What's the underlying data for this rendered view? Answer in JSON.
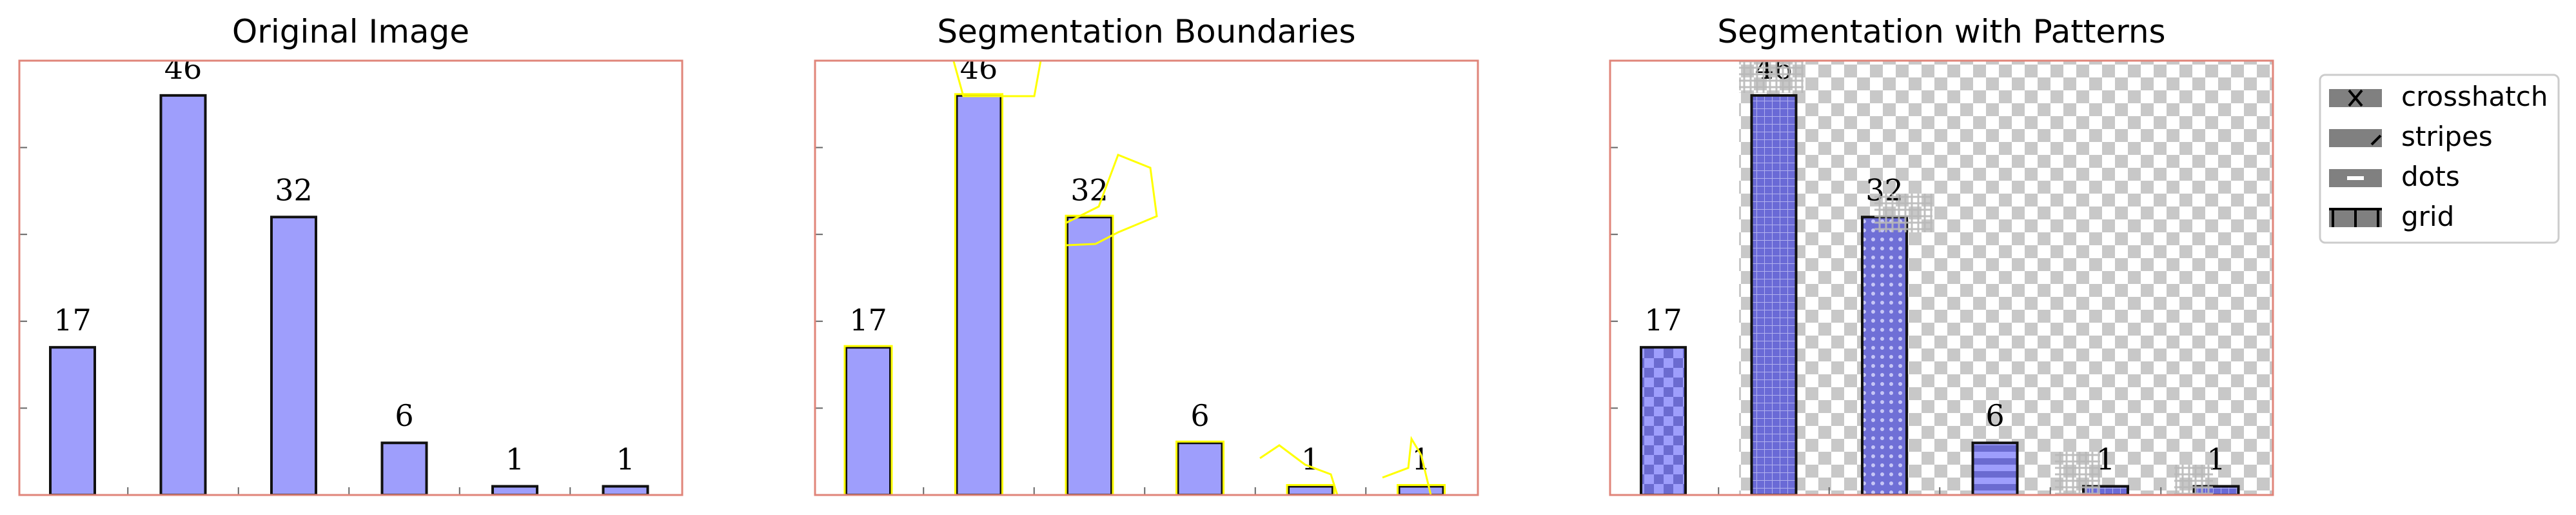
{
  "colors": {
    "bar": "#9e9efc",
    "bar_dark": "#6666cc",
    "frame": "#e0857a",
    "boundary": "#ffff00",
    "checker": "#c8c8c8"
  },
  "legend": {
    "entries": [
      {
        "label": "crosshatch",
        "icon": "crosshatch-swatch"
      },
      {
        "label": "stripes",
        "icon": "stripes-swatch"
      },
      {
        "label": "dots",
        "icon": "dots-swatch"
      },
      {
        "label": "grid",
        "icon": "grid-swatch"
      }
    ]
  },
  "chart_data": [
    {
      "type": "bar",
      "title": "Original Image",
      "categories": [
        "",
        "",
        "",
        "",
        "",
        ""
      ],
      "values": [
        17,
        46,
        32,
        6,
        1,
        1
      ],
      "data_labels": [
        "17",
        "46",
        "32",
        "6",
        "1",
        "1"
      ],
      "ylim": [
        0,
        50
      ],
      "grid": false
    },
    {
      "type": "bar",
      "title": "Segmentation Boundaries",
      "categories": [
        "",
        "",
        "",
        "",
        "",
        ""
      ],
      "values": [
        17,
        46,
        32,
        6,
        1,
        1
      ],
      "data_labels": [
        "17",
        "46",
        "32",
        "6",
        "1",
        "1"
      ],
      "ylim": [
        0,
        50
      ],
      "grid": false
    },
    {
      "type": "bar",
      "title": "Segmentation with Patterns",
      "categories": [
        "",
        "",
        "",
        "",
        "",
        ""
      ],
      "values": [
        17,
        46,
        32,
        6,
        1,
        1
      ],
      "data_labels": [
        "17",
        "46",
        "32",
        "6",
        "1",
        "1"
      ],
      "ylim": [
        0,
        50
      ],
      "grid": false,
      "legend_position": "right"
    }
  ]
}
